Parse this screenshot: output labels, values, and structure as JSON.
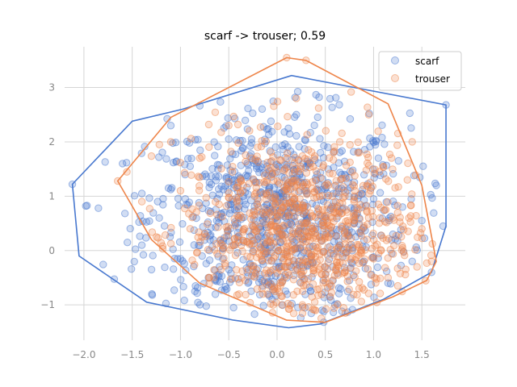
{
  "chart_data": {
    "type": "scatter",
    "title": "scarf -> trouser; 0.59",
    "xlabel": "",
    "ylabel": "",
    "xlim": [
      -2.2,
      1.95
    ],
    "ylim": [
      -1.65,
      3.75
    ],
    "x_ticks": [
      -2.0,
      -1.5,
      -1.0,
      -0.5,
      0.0,
      0.5,
      1.0,
      1.5
    ],
    "x_tick_labels": [
      "−2.0",
      "−1.5",
      "−1.0",
      "−0.5",
      "0.0",
      "0.5",
      "1.0",
      "1.5"
    ],
    "y_ticks": [
      -1,
      0,
      1,
      2,
      3
    ],
    "y_tick_labels": [
      "−1",
      "0",
      "1",
      "2",
      "3"
    ],
    "grid": true,
    "legend_position": "top-right",
    "series": [
      {
        "name": "scarf",
        "color": "#4878cf",
        "marker": "circle",
        "point_count_estimate": 1500,
        "center": [
          0.0,
          0.6
        ],
        "hull": [
          [
            -2.12,
            1.22
          ],
          [
            -1.5,
            2.38
          ],
          [
            -0.98,
            2.6
          ],
          [
            0.15,
            3.22
          ],
          [
            1.75,
            2.68
          ],
          [
            1.75,
            0.45
          ],
          [
            1.6,
            -0.4
          ],
          [
            1.1,
            -0.9
          ],
          [
            0.45,
            -1.35
          ],
          [
            0.12,
            -1.42
          ],
          [
            -0.45,
            -1.28
          ],
          [
            -1.35,
            -0.95
          ],
          [
            -2.05,
            -0.1
          ]
        ],
        "sample_points": [
          [
            -2.12,
            1.22
          ],
          [
            -1.85,
            0.78
          ],
          [
            -1.6,
            1.6
          ],
          [
            -1.55,
            0.15
          ],
          [
            -1.4,
            1.05
          ],
          [
            -1.3,
            -0.35
          ],
          [
            -1.22,
            0.6
          ],
          [
            -1.1,
            2.3
          ],
          [
            -1.0,
            -0.15
          ],
          [
            -0.95,
            0.95
          ],
          [
            -0.9,
            1.55
          ],
          [
            -0.85,
            -0.75
          ],
          [
            -0.75,
            0.3
          ],
          [
            -0.7,
            1.25
          ],
          [
            -0.62,
            -0.45
          ],
          [
            -0.55,
            0.7
          ],
          [
            -0.5,
            2.05
          ],
          [
            -0.45,
            -1.05
          ],
          [
            -0.4,
            0.15
          ],
          [
            -0.35,
            1.0
          ],
          [
            -0.3,
            -0.6
          ],
          [
            -0.25,
            0.45
          ],
          [
            -0.2,
            1.65
          ],
          [
            -0.15,
            -0.2
          ],
          [
            -0.1,
            0.85
          ],
          [
            -0.05,
            -0.9
          ],
          [
            0.0,
            0.25
          ],
          [
            0.05,
            1.35
          ],
          [
            0.1,
            -0.5
          ],
          [
            0.15,
            0.6
          ],
          [
            0.2,
            2.5
          ],
          [
            0.25,
            -0.1
          ],
          [
            0.3,
            1.1
          ],
          [
            0.35,
            -0.75
          ],
          [
            0.4,
            0.4
          ],
          [
            0.45,
            1.8
          ],
          [
            0.5,
            -0.3
          ],
          [
            0.55,
            0.75
          ],
          [
            0.6,
            -1.0
          ],
          [
            0.65,
            0.1
          ],
          [
            0.7,
            1.4
          ],
          [
            0.75,
            -0.55
          ],
          [
            0.8,
            0.5
          ],
          [
            0.9,
            -0.2
          ],
          [
            1.0,
            0.95
          ],
          [
            1.05,
            1.7
          ],
          [
            1.15,
            -0.6
          ],
          [
            1.2,
            0.3
          ],
          [
            1.3,
            0.8
          ],
          [
            1.4,
            -0.2
          ],
          [
            1.5,
            0.55
          ],
          [
            1.65,
            1.2
          ],
          [
            1.75,
            2.68
          ],
          [
            1.72,
            0.45
          ],
          [
            1.6,
            -0.4
          ]
        ]
      },
      {
        "name": "trouser",
        "color": "#ee854a",
        "marker": "circle",
        "point_count_estimate": 1500,
        "center": [
          0.25,
          0.3
        ],
        "hull": [
          [
            -1.65,
            1.28
          ],
          [
            -1.1,
            2.45
          ],
          [
            0.1,
            3.55
          ],
          [
            0.3,
            3.5
          ],
          [
            1.15,
            2.7
          ],
          [
            1.5,
            1.2
          ],
          [
            1.65,
            -0.2
          ],
          [
            1.55,
            -0.55
          ],
          [
            1.2,
            -0.85
          ],
          [
            0.5,
            -1.32
          ],
          [
            0.1,
            -1.28
          ],
          [
            -0.8,
            -0.6
          ],
          [
            -1.3,
            0.2
          ]
        ],
        "sample_points": [
          [
            -1.65,
            1.28
          ],
          [
            -1.4,
            0.9
          ],
          [
            -1.25,
            0.25
          ],
          [
            -1.1,
            2.0
          ],
          [
            -1.0,
            1.1
          ],
          [
            -0.9,
            0.4
          ],
          [
            -0.8,
            1.7
          ],
          [
            -0.7,
            -0.5
          ],
          [
            -0.6,
            0.85
          ],
          [
            -0.5,
            2.3
          ],
          [
            -0.45,
            0.1
          ],
          [
            -0.4,
            1.25
          ],
          [
            -0.3,
            -0.35
          ],
          [
            -0.25,
            0.65
          ],
          [
            -0.2,
            1.9
          ],
          [
            -0.1,
            -0.8
          ],
          [
            -0.05,
            0.35
          ],
          [
            0.0,
            1.45
          ],
          [
            0.05,
            -1.0
          ],
          [
            0.1,
            0.0
          ],
          [
            0.15,
            0.9
          ],
          [
            0.2,
            2.8
          ],
          [
            0.25,
            -0.6
          ],
          [
            0.3,
            0.5
          ],
          [
            0.35,
            1.6
          ],
          [
            0.4,
            -1.1
          ],
          [
            0.45,
            -0.3
          ],
          [
            0.5,
            0.25
          ],
          [
            0.5,
            1.2
          ],
          [
            0.55,
            -0.85
          ],
          [
            0.6,
            0.7
          ],
          [
            0.65,
            2.0
          ],
          [
            0.7,
            -0.4
          ],
          [
            0.75,
            0.1
          ],
          [
            0.8,
            1.0
          ],
          [
            0.85,
            -0.7
          ],
          [
            0.9,
            0.45
          ],
          [
            0.95,
            2.5
          ],
          [
            1.0,
            -0.15
          ],
          [
            1.05,
            0.85
          ],
          [
            1.1,
            1.55
          ],
          [
            1.15,
            -0.5
          ],
          [
            1.2,
            0.6
          ],
          [
            1.3,
            0.05
          ],
          [
            1.35,
            1.3
          ],
          [
            1.45,
            -0.3
          ],
          [
            1.5,
            0.4
          ],
          [
            1.6,
            -0.2
          ],
          [
            1.4,
            2.0
          ],
          [
            0.1,
            3.55
          ],
          [
            0.3,
            3.5
          ]
        ]
      }
    ]
  }
}
